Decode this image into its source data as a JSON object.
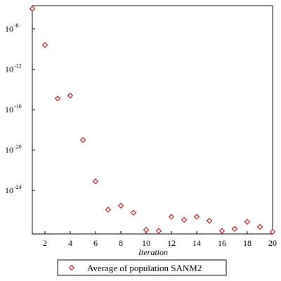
{
  "chart_data": {
    "type": "scatter",
    "xlabel": "Iteration",
    "ylabel": "",
    "title": "",
    "xlim": [
      1,
      20
    ],
    "xticks": [
      2,
      4,
      6,
      8,
      10,
      12,
      14,
      16,
      18,
      20
    ],
    "yscale": "log",
    "ylim_exp": [
      -28.3,
      -5.7
    ],
    "yticks": [
      {
        "base": "10",
        "exp": "-8"
      },
      {
        "base": "10",
        "exp": "-12"
      },
      {
        "base": "10",
        "exp": "-16"
      },
      {
        "base": "10",
        "exp": "-20"
      },
      {
        "base": "10",
        "exp": "-24"
      }
    ],
    "grid": false,
    "legend": "bottom",
    "marker": "diamond",
    "marker_color": "#b22222",
    "series": [
      {
        "name": "Average of population SANM2",
        "x": [
          1,
          2,
          3,
          4,
          5,
          6,
          7,
          8,
          9,
          10,
          11,
          12,
          13,
          14,
          15,
          16,
          17,
          18,
          19,
          20
        ],
        "y_exp": [
          -6.0,
          -9.6,
          -14.9,
          -14.6,
          -19.0,
          -23.1,
          -25.9,
          -25.5,
          -26.2,
          -27.9,
          -28.0,
          -26.6,
          -26.9,
          -26.6,
          -27.0,
          -28.0,
          -27.8,
          -27.1,
          -27.6,
          -28.1
        ]
      }
    ]
  }
}
